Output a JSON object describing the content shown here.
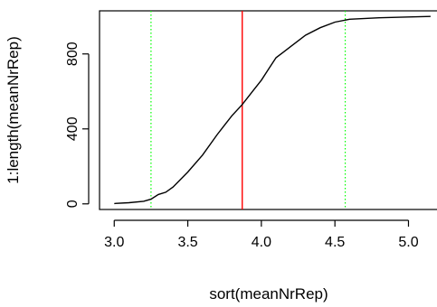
{
  "chart_data": {
    "type": "line",
    "xlabel": "sort(meanNrRep)",
    "ylabel": "1:length(meanNrRep)",
    "xlim": [
      2.9,
      5.2
    ],
    "ylim": [
      -30,
      1030
    ],
    "x_ticks": [
      3.0,
      3.5,
      4.0,
      4.5,
      5.0
    ],
    "x_tick_labels": [
      "3.0",
      "3.5",
      "4.0",
      "4.5",
      "5.0"
    ],
    "y_ticks": [
      0,
      400,
      800
    ],
    "y_tick_labels": [
      "0",
      "400",
      "800"
    ],
    "grid": false,
    "legend": null,
    "series": [
      {
        "x": [
          3.0,
          3.1,
          3.2,
          3.25,
          3.3,
          3.35,
          3.4,
          3.5,
          3.6,
          3.7,
          3.75,
          3.8,
          3.87,
          3.95,
          4.0,
          4.05,
          4.1,
          4.15,
          4.2,
          4.3,
          4.4,
          4.5,
          4.6,
          4.8,
          5.0,
          5.15
        ],
        "y": [
          2,
          6,
          14,
          25,
          50,
          62,
          90,
          170,
          260,
          370,
          420,
          470,
          530,
          610,
          660,
          720,
          780,
          810,
          840,
          900,
          940,
          970,
          985,
          993,
          997,
          1000
        ],
        "color": "#000000"
      }
    ],
    "vertical_lines": [
      {
        "x": 3.87,
        "color": "#ff0000",
        "style": "solid"
      },
      {
        "x": 3.25,
        "color": "#00ff00",
        "style": "dotted"
      },
      {
        "x": 4.57,
        "color": "#00ff00",
        "style": "dotted"
      }
    ]
  }
}
